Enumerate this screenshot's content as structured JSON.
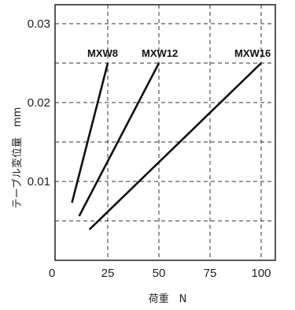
{
  "chart_data": {
    "type": "line",
    "xlabel": "荷重　N",
    "ylabel": "テーブル変位量　mm",
    "xlim": [
      0,
      110
    ],
    "ylim": [
      0,
      0.031
    ],
    "x_ticks": [
      0,
      25,
      50,
      75,
      100
    ],
    "x_tick_labels": [
      "0",
      "25",
      "50",
      "75",
      "100"
    ],
    "y_ticks": [
      0.01,
      0.02,
      0.03
    ],
    "y_tick_labels": [
      "0.01",
      "0.02",
      "0.03"
    ],
    "grid": true,
    "series": [
      {
        "name": "MXW8",
        "x": [
          7.5,
          25
        ],
        "y": [
          0.0073,
          0.025
        ]
      },
      {
        "name": "MXW12",
        "x": [
          11,
          50
        ],
        "y": [
          0.0056,
          0.025
        ]
      },
      {
        "name": "MXW16",
        "x": [
          16,
          100
        ],
        "y": [
          0.0039,
          0.025
        ]
      }
    ],
    "colors": {
      "line": "#111111",
      "grid": "#333333",
      "frame": "#111111"
    }
  }
}
